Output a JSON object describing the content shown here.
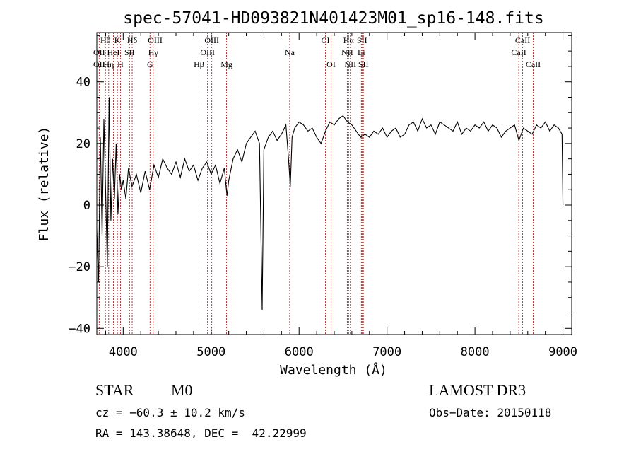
{
  "chart_data": {
    "type": "line",
    "title": "spec-57041-HD093821N401423M01_sp16-148.fits",
    "xlabel": "Wavelength (Å)",
    "ylabel": "Flux (relative)",
    "xlim": [
      3700,
      9100
    ],
    "ylim": [
      -42,
      56
    ],
    "x_ticks": [
      4000,
      5000,
      6000,
      7000,
      8000,
      9000
    ],
    "y_ticks": [
      -40,
      -20,
      0,
      20,
      40
    ],
    "x_tick_labels": [
      "4000",
      "5000",
      "6000",
      "7000",
      "8000",
      "9000"
    ],
    "y_tick_labels": [
      "−40",
      "−20",
      "0",
      "20",
      "40"
    ],
    "series": [
      {
        "name": "flux",
        "x": [
          3700,
          3720,
          3740,
          3760,
          3780,
          3800,
          3820,
          3840,
          3860,
          3880,
          3900,
          3920,
          3940,
          3960,
          3980,
          4000,
          4030,
          4060,
          4100,
          4150,
          4200,
          4250,
          4300,
          4350,
          4400,
          4450,
          4500,
          4550,
          4600,
          4650,
          4700,
          4750,
          4800,
          4850,
          4900,
          4950,
          5000,
          5050,
          5100,
          5150,
          5180,
          5200,
          5250,
          5300,
          5350,
          5400,
          5450,
          5500,
          5550,
          5580,
          5600,
          5650,
          5700,
          5750,
          5800,
          5850,
          5880,
          5900,
          5920,
          5950,
          6000,
          6050,
          6100,
          6150,
          6200,
          6250,
          6300,
          6350,
          6400,
          6450,
          6500,
          6550,
          6600,
          6650,
          6700,
          6750,
          6800,
          6850,
          6900,
          6950,
          7000,
          7050,
          7100,
          7150,
          7200,
          7250,
          7300,
          7350,
          7400,
          7450,
          7500,
          7550,
          7600,
          7650,
          7700,
          7750,
          7800,
          7850,
          7900,
          7950,
          8000,
          8050,
          8100,
          8150,
          8200,
          8250,
          8300,
          8350,
          8400,
          8450,
          8500,
          8550,
          8600,
          8650,
          8700,
          8750,
          8800,
          8850,
          8900,
          8950,
          8990,
          9000
        ],
        "y": [
          -8,
          -25,
          22,
          -10,
          28,
          5,
          -20,
          35,
          -5,
          15,
          2,
          20,
          -3,
          10,
          5,
          8,
          2,
          12,
          6,
          10,
          4,
          11,
          5,
          13,
          9,
          15,
          12,
          10,
          14,
          9,
          15,
          11,
          13,
          8,
          12,
          14,
          10,
          13,
          7,
          12,
          3,
          8,
          15,
          18,
          14,
          20,
          22,
          24,
          20,
          -34,
          18,
          22,
          24,
          21,
          23,
          26,
          15,
          6,
          22,
          25,
          27,
          26,
          24,
          25,
          22,
          20,
          24,
          27,
          26,
          28,
          29,
          27,
          26,
          24,
          22,
          23,
          22,
          24,
          23,
          25,
          22,
          24,
          25,
          22,
          23,
          26,
          27,
          24,
          28,
          25,
          26,
          23,
          27,
          26,
          25,
          24,
          27,
          23,
          25,
          24,
          26,
          25,
          27,
          24,
          26,
          25,
          22,
          24,
          25,
          26,
          21,
          25,
          24,
          23,
          26,
          25,
          27,
          24,
          26,
          25,
          23,
          0
        ]
      }
    ],
    "lines": {
      "row1": [
        {
          "label": "Hθ",
          "x": 3798
        },
        {
          "label": "K",
          "x": 3934
        },
        {
          "label": "Hδ",
          "x": 4102
        },
        {
          "label": "OIII",
          "x": 4363
        },
        {
          "label": "OIII",
          "x": 5007
        },
        {
          "label": "CI",
          "x": 6300
        },
        {
          "label": "Hα",
          "x": 6563
        },
        {
          "label": "SII",
          "x": 6716
        },
        {
          "label": "CaII",
          "x": 8542
        }
      ],
      "row2": [
        {
          "label": "OII",
          "x": 3727
        },
        {
          "label": "HeI",
          "x": 3889
        },
        {
          "label": "SII",
          "x": 4072
        },
        {
          "label": "Hγ",
          "x": 4341
        },
        {
          "label": "OIII",
          "x": 4959
        },
        {
          "label": "Na",
          "x": 5893
        },
        {
          "label": "NII",
          "x": 6548
        },
        {
          "label": "Li",
          "x": 6708
        },
        {
          "label": "CaII",
          "x": 8498
        }
      ],
      "row3": [
        {
          "label": "OII",
          "x": 3727
        },
        {
          "label": "Hη",
          "x": 3835
        },
        {
          "label": "H",
          "x": 3969
        },
        {
          "label": "G",
          "x": 4305
        },
        {
          "label": "Hβ",
          "x": 4861
        },
        {
          "label": "Mg",
          "x": 5175
        },
        {
          "label": "OI",
          "x": 6364
        },
        {
          "label": "NII",
          "x": 6583
        },
        {
          "label": "SII",
          "x": 6731
        },
        {
          "label": "CaII",
          "x": 8662
        }
      ]
    }
  },
  "info": {
    "object_class": "STAR",
    "subclass": "M0",
    "survey": "LAMOST DR3",
    "cz": "cz = −60.3 ± 10.2 km/s",
    "obs_date": "Obs−Date: 20150118",
    "coords": "RA = 143.38648, DEC =  42.22999"
  },
  "colors": {
    "line_marker": "#b22222",
    "spectrum": "#000000",
    "axis": "#000000"
  }
}
